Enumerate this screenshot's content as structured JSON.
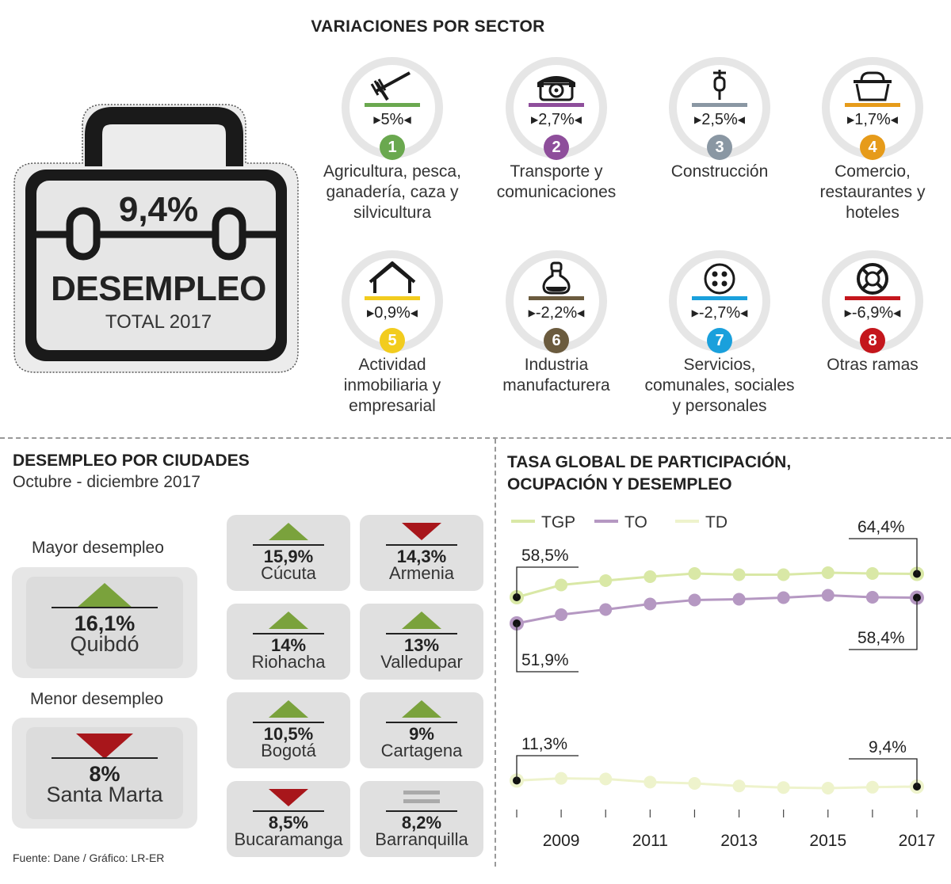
{
  "header": {
    "sector_title": "VARIACIONES POR SECTOR"
  },
  "total": {
    "rate": "9,4%",
    "label": "DESEMPLEO",
    "sublabel": "TOTAL 2017"
  },
  "sectors": [
    {
      "number": "1",
      "value": "5%",
      "name_lines": [
        "Agricultura, pesca,",
        "ganadería, caza y",
        "silvicultura"
      ],
      "color": "#6aa84f",
      "icon": "rake-icon"
    },
    {
      "number": "2",
      "value": "2,7%",
      "name_lines": [
        "Transporte y",
        "comunicaciones"
      ],
      "color": "#8e4e9b",
      "icon": "telephone-icon"
    },
    {
      "number": "3",
      "value": "2,5%",
      "name_lines": [
        "Construcción"
      ],
      "color": "#8a97a3",
      "icon": "trowel-icon"
    },
    {
      "number": "4",
      "value": "1,7%",
      "name_lines": [
        "Comercio,",
        "restaurantes y",
        "hoteles"
      ],
      "color": "#e69b1a",
      "icon": "basket-icon"
    },
    {
      "number": "5",
      "value": "0,9%",
      "name_lines": [
        "Actividad",
        "inmobiliaria y",
        "empresarial"
      ],
      "color": "#f2cc1e",
      "icon": "house-icon"
    },
    {
      "number": "6",
      "value": "-2,2%",
      "name_lines": [
        "Industria",
        "manufacturera"
      ],
      "color": "#6b5b3e",
      "icon": "flask-icon"
    },
    {
      "number": "7",
      "value": "-2,7%",
      "name_lines": [
        "Servicios,",
        "comunales, sociales",
        "y personales"
      ],
      "color": "#1aa0dc",
      "icon": "button-icon"
    },
    {
      "number": "8",
      "value": "-6,9%",
      "name_lines": [
        "Otras ramas"
      ],
      "color": "#c4161c",
      "icon": "lifebuoy-icon"
    }
  ],
  "cities_section": {
    "title": "DESEMPLEO POR CIUDADES",
    "subtitle": "Octubre - diciembre 2017",
    "highest_label": "Mayor desempleo",
    "highest": {
      "value": "16,1%",
      "city": "Quibdó",
      "trend": "up"
    },
    "lowest_label": "Menor desempleo",
    "lowest": {
      "value": "8%",
      "city": "Santa Marta",
      "trend": "down"
    },
    "cities": [
      {
        "value": "15,9%",
        "city": "Cúcuta",
        "trend": "up"
      },
      {
        "value": "14,3%",
        "city": "Armenia",
        "trend": "down"
      },
      {
        "value": "14%",
        "city": "Riohacha",
        "trend": "up"
      },
      {
        "value": "13%",
        "city": "Valledupar",
        "trend": "up"
      },
      {
        "value": "10,5%",
        "city": "Bogotá",
        "trend": "up"
      },
      {
        "value": "9%",
        "city": "Cartagena",
        "trend": "up"
      },
      {
        "value": "8,5%",
        "city": "Bucaramanga",
        "trend": "down"
      },
      {
        "value": "8,2%",
        "city": "Barranquilla",
        "trend": "equal"
      }
    ],
    "colors": {
      "up": "#7aa23c",
      "down": "#a8161b",
      "equal": "#aaaaaa"
    }
  },
  "source": "Fuente: Dane / Gráfico: LR-ER",
  "chart_data": {
    "type": "line",
    "title_lines": [
      "TASA GLOBAL DE PARTICIPACIÓN,",
      "OCUPACIÓN Y DESEMPLEO"
    ],
    "x": [
      2008,
      2009,
      2010,
      2011,
      2012,
      2013,
      2014,
      2015,
      2016,
      2017
    ],
    "x_tick_labels": [
      "2009",
      "2011",
      "2013",
      "2015",
      "2017"
    ],
    "x_tick_values": [
      2009,
      2011,
      2013,
      2015,
      2017
    ],
    "series": [
      {
        "name": "TGP",
        "color": "#d9e8a6",
        "values": [
          58.5,
          61.6,
          62.7,
          63.7,
          64.5,
          64.2,
          64.2,
          64.7,
          64.5,
          64.4
        ]
      },
      {
        "name": "TO",
        "color": "#b598c2",
        "values": [
          51.9,
          54.1,
          55.4,
          56.8,
          57.8,
          58.0,
          58.4,
          59.0,
          58.5,
          58.4
        ]
      },
      {
        "name": "TD",
        "color": "#eef3cc",
        "values": [
          11.3,
          12.0,
          11.8,
          10.8,
          10.4,
          9.6,
          9.1,
          8.9,
          9.2,
          9.4
        ]
      }
    ],
    "annotations": [
      {
        "text": "58,5%",
        "series": "TGP",
        "x": 2008
      },
      {
        "text": "64,4%",
        "series": "TGP",
        "x": 2017
      },
      {
        "text": "51,9%",
        "series": "TO",
        "x": 2008
      },
      {
        "text": "58,4%",
        "series": "TO",
        "x": 2017
      },
      {
        "text": "11,3%",
        "series": "TD",
        "x": 2008
      },
      {
        "text": "9,4%",
        "series": "TD",
        "x": 2017
      }
    ],
    "legend_position": "top",
    "grid": false
  }
}
